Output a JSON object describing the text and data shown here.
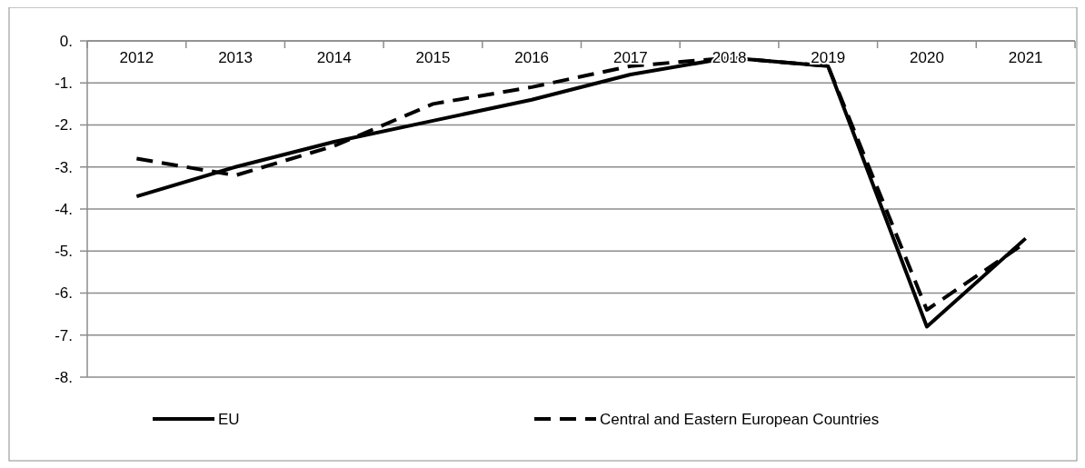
{
  "chart_data": {
    "type": "line",
    "categories": [
      "2012",
      "2013",
      "2014",
      "2015",
      "2016",
      "2017",
      "2018",
      "2019",
      "2020",
      "2021"
    ],
    "series": [
      {
        "name": "EU",
        "color": "#000000",
        "line_style": "solid",
        "values": [
          -3.7,
          -3.0,
          -2.4,
          -1.9,
          -1.4,
          -0.8,
          -0.4,
          -0.6,
          -6.8,
          -4.7
        ]
      },
      {
        "name": "Central and Eastern European Countries",
        "color": "#000000",
        "line_style": "dashed",
        "values": [
          -2.8,
          -3.2,
          -2.5,
          -1.5,
          -1.1,
          -0.6,
          -0.4,
          -0.6,
          -6.4,
          -4.8
        ]
      }
    ],
    "ylim": [
      -8,
      0
    ],
    "yticks": [
      {
        "value": 0,
        "label": "0."
      },
      {
        "value": -1,
        "label": "-1."
      },
      {
        "value": -2,
        "label": "-2."
      },
      {
        "value": -3,
        "label": "-3."
      },
      {
        "value": -4,
        "label": "-4."
      },
      {
        "value": -5,
        "label": "-5."
      },
      {
        "value": -6,
        "label": "-6."
      },
      {
        "value": -7,
        "label": "-7."
      },
      {
        "value": -8,
        "label": "-8."
      }
    ],
    "grid": "y",
    "legend": "bottom"
  }
}
